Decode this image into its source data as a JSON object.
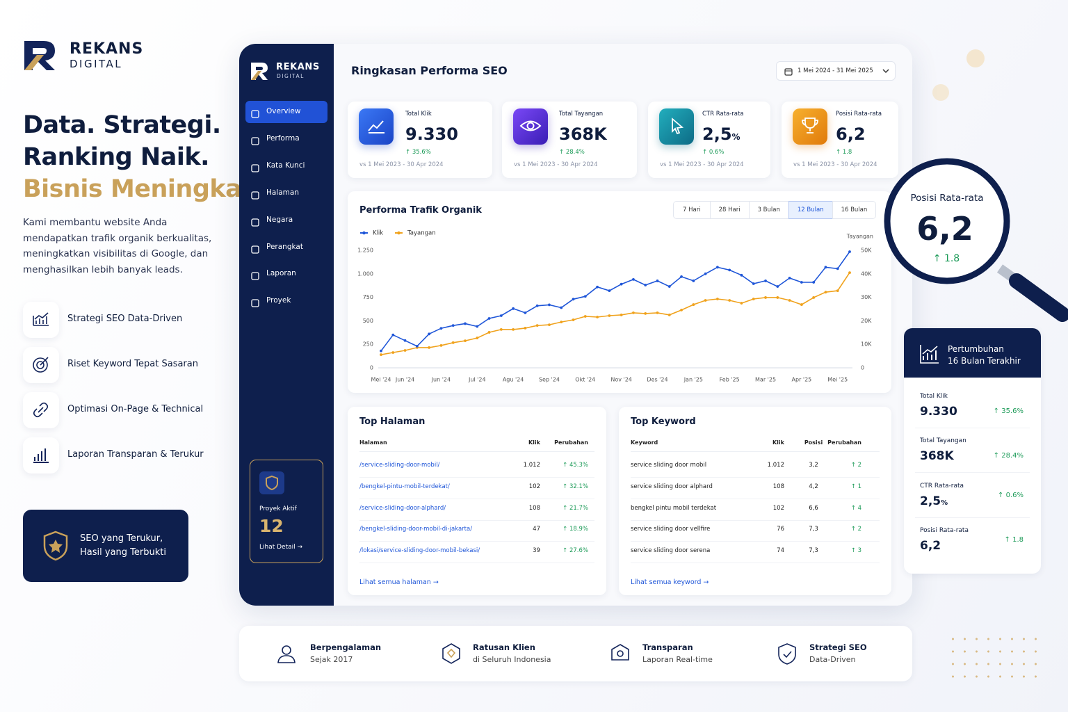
{
  "brand": {
    "name": "REKANS",
    "sub": "DIGITAL"
  },
  "hero": {
    "lines": [
      "Data. Strategi.",
      "Ranking Naik."
    ],
    "highlight": "Bisnis Meningkat.",
    "description": "Kami membantu website Anda mendapatkan trafik organik berkualitas, meningkatkan visibilitas di Google, dan menghasilkan lebih banyak leads."
  },
  "features": [
    "Strategi SEO Data-Driven",
    "Riset Keyword Tepat Sasaran",
    "Optimasi On-Page & Technical",
    "Laporan Transparan & Terukur"
  ],
  "badge": [
    "SEO yang Terukur,",
    "Hasil yang Terbukti"
  ],
  "sidebar": {
    "brand": {
      "name": "REKANS",
      "sub": "DIGITAL"
    },
    "menu": [
      "Overview",
      "Performa",
      "Kata Kunci",
      "Halaman",
      "Negara",
      "Perangkat",
      "Laporan",
      "Proyek"
    ],
    "active": 0,
    "project": {
      "label": "Proyek Aktif",
      "value": 12,
      "link": "Lihat Detail →"
    }
  },
  "header": {
    "title": "Ringkasan Performa SEO",
    "date_range": "1 Mei 2024 - 31 Mei 2025"
  },
  "kpis": [
    {
      "label": "Total Klik",
      "value": "9.330",
      "change": "↑ 35.6%",
      "compare": "vs 1 Mei 2023 - 30 Apr 2024"
    },
    {
      "label": "Total Tayangan",
      "value": "368K",
      "change": "↑ 28.4%",
      "compare": "vs 1 Mei 2023 - 30 Apr 2024"
    },
    {
      "label": "CTR Rata-rata",
      "value": "2,5",
      "unit": "%",
      "change": "↑ 0.6%",
      "compare": "vs 1 Mei 2023 - 30 Apr 2024"
    },
    {
      "label": "Posisi Rata-rata",
      "value": "6,2",
      "change": "↑ 1.8",
      "compare": "vs 1 Mei 2023 - 30 Apr 2024"
    }
  ],
  "traffic_panel": {
    "title": "Performa Trafik Organik",
    "ranges": [
      "7 Hari",
      "28 Hari",
      "3 Bulan",
      "12 Bulan",
      "16 Bulan"
    ],
    "active_range": 3
  },
  "chart_data": {
    "type": "line",
    "categories": [
      "Mei '24",
      null,
      "Jun '24",
      null,
      null,
      "Jun '24",
      null,
      null,
      "Jul '24",
      null,
      null,
      "Agu '24",
      null,
      null,
      "Sep '24",
      null,
      null,
      "Okt '24",
      null,
      null,
      "Nov '24",
      null,
      null,
      "Des '24",
      null,
      null,
      "Jan '25",
      null,
      null,
      "Feb '25",
      null,
      null,
      "Mar '25",
      null,
      null,
      "Apr '25",
      null,
      null,
      "Mei '25",
      null
    ],
    "series": [
      {
        "name": "Klik",
        "color": "#1f56d8",
        "values": [
          180,
          350,
          290,
          230,
          360,
          420,
          450,
          470,
          440,
          525,
          555,
          630,
          585,
          660,
          670,
          640,
          730,
          760,
          860,
          820,
          890,
          940,
          880,
          925,
          865,
          970,
          925,
          1000,
          1070,
          1040,
          985,
          895,
          925,
          865,
          955,
          910,
          910,
          1070,
          1055,
          1235
        ]
      },
      {
        "name": "Tayangan",
        "color": "#f0a21c",
        "axis": "y2",
        "values": [
          5600,
          6500,
          7400,
          8600,
          8600,
          9500,
          10700,
          11500,
          12700,
          15100,
          16300,
          16300,
          16900,
          18000,
          18300,
          19500,
          20400,
          21900,
          21600,
          22200,
          22500,
          23400,
          23100,
          23400,
          22500,
          24600,
          26900,
          28700,
          29300,
          28700,
          27500,
          29300,
          29900,
          29900,
          28700,
          26900,
          29900,
          32200,
          32800,
          40500
        ]
      }
    ],
    "ylim": [
      0,
      1250
    ],
    "yticks": [
      0,
      250,
      500,
      750,
      {
        "value": 1000,
        "label": "1.000"
      },
      {
        "value": 1250,
        "label": "1.250"
      }
    ],
    "y2lim": [
      0,
      50000
    ],
    "y2ticks": [
      0,
      {
        "value": 10000,
        "label": "10K"
      },
      {
        "value": 20000,
        "label": "20K"
      },
      {
        "value": 30000,
        "label": "30K"
      },
      {
        "value": 40000,
        "label": "40K"
      },
      {
        "value": 50000,
        "label": "50K"
      }
    ],
    "y2_label": "Tayangan",
    "legend": "top-left",
    "grid": false
  },
  "top_pages": {
    "title": "Top Halaman",
    "columns": [
      "Halaman",
      "Klik",
      "Perubahan"
    ],
    "rows": [
      [
        "/service-sliding-door-mobil/",
        "1.012",
        "↑ 45.3%"
      ],
      [
        "/bengkel-pintu-mobil-terdekat/",
        "102",
        "↑ 32.1%"
      ],
      [
        "/service-sliding-door-alphard/",
        "108",
        "↑ 21.7%"
      ],
      [
        "/bengkel-sliding-door-mobil-di-jakarta/",
        "47",
        "↑ 18.9%"
      ],
      [
        "/lokasi/service-sliding-door-mobil-bekasi/",
        "39",
        "↑ 27.6%"
      ]
    ],
    "link": "Lihat semua halaman →"
  },
  "top_keywords": {
    "title": "Top Keyword",
    "columns": [
      "Keyword",
      "Klik",
      "Posisi",
      "Perubahan"
    ],
    "rows": [
      [
        "service sliding door mobil",
        "1.012",
        "3,2",
        "↑ 2"
      ],
      [
        "service sliding door alphard",
        "108",
        "4,2",
        "↑ 1"
      ],
      [
        "bengkel pintu mobil terdekat",
        "102",
        "6,6",
        "↑ 4"
      ],
      [
        "service sliding door vellfire",
        "76",
        "7,3",
        "↑ 2"
      ],
      [
        "service sliding door serena",
        "74",
        "7,3",
        "↑ 3"
      ]
    ],
    "link": "Lihat semua keyword →"
  },
  "magnifier": {
    "label": "Posisi Rata-rata",
    "value": "6,2",
    "change": "↑ 1.8"
  },
  "growth": {
    "title": [
      "Pertumbuhan",
      "16 Bulan Terakhir"
    ],
    "items": [
      {
        "label": "Total Klik",
        "value": "9.330",
        "change": "↑ 35.6%"
      },
      {
        "label": "Total Tayangan",
        "value": "368K",
        "change": "↑ 28.4%"
      },
      {
        "label": "CTR Rata-rata",
        "value": "2,5",
        "unit": "%",
        "change": "↑ 0.6%"
      },
      {
        "label": "Posisi Rata-rata",
        "value": "6,2",
        "change": "↑ 1.8"
      }
    ]
  },
  "footer": [
    {
      "title": "Berpengalaman",
      "sub": "Sejak 2017"
    },
    {
      "title": "Ratusan Klien",
      "sub": "di Seluruh Indonesia"
    },
    {
      "title": "Transparan",
      "sub": "Laporan Real-time"
    },
    {
      "title": "Strategi SEO",
      "sub": "Data-Driven"
    }
  ]
}
